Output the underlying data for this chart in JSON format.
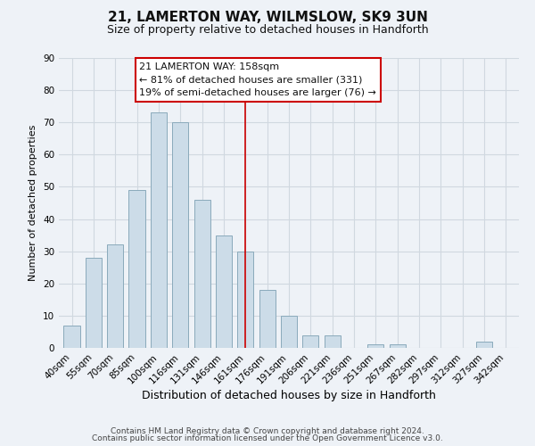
{
  "title": "21, LAMERTON WAY, WILMSLOW, SK9 3UN",
  "subtitle": "Size of property relative to detached houses in Handforth",
  "xlabel": "Distribution of detached houses by size in Handforth",
  "ylabel": "Number of detached properties",
  "bar_labels": [
    "40sqm",
    "55sqm",
    "70sqm",
    "85sqm",
    "100sqm",
    "116sqm",
    "131sqm",
    "146sqm",
    "161sqm",
    "176sqm",
    "191sqm",
    "206sqm",
    "221sqm",
    "236sqm",
    "251sqm",
    "267sqm",
    "282sqm",
    "297sqm",
    "312sqm",
    "327sqm",
    "342sqm"
  ],
  "bar_values": [
    7,
    28,
    32,
    49,
    73,
    70,
    46,
    35,
    30,
    18,
    10,
    4,
    4,
    0,
    1,
    1,
    0,
    0,
    0,
    2,
    0
  ],
  "bar_color": "#ccdce8",
  "bar_edge_color": "#8aaabb",
  "vline_color": "#cc0000",
  "vline_index": 8,
  "ann_line1": "21 LAMERTON WAY: 158sqm",
  "ann_line2": "← 81% of detached houses are smaller (331)",
  "ann_line3": "19% of semi-detached houses are larger (76) →",
  "ylim": [
    0,
    90
  ],
  "yticks": [
    0,
    10,
    20,
    30,
    40,
    50,
    60,
    70,
    80,
    90
  ],
  "grid_color": "#d0d8e0",
  "background_color": "#eef2f7",
  "footer_line1": "Contains HM Land Registry data © Crown copyright and database right 2024.",
  "footer_line2": "Contains public sector information licensed under the Open Government Licence v3.0.",
  "title_fontsize": 11,
  "subtitle_fontsize": 9,
  "xlabel_fontsize": 9,
  "ylabel_fontsize": 8,
  "tick_fontsize": 7.5,
  "ann_fontsize": 8,
  "footer_fontsize": 6.5
}
